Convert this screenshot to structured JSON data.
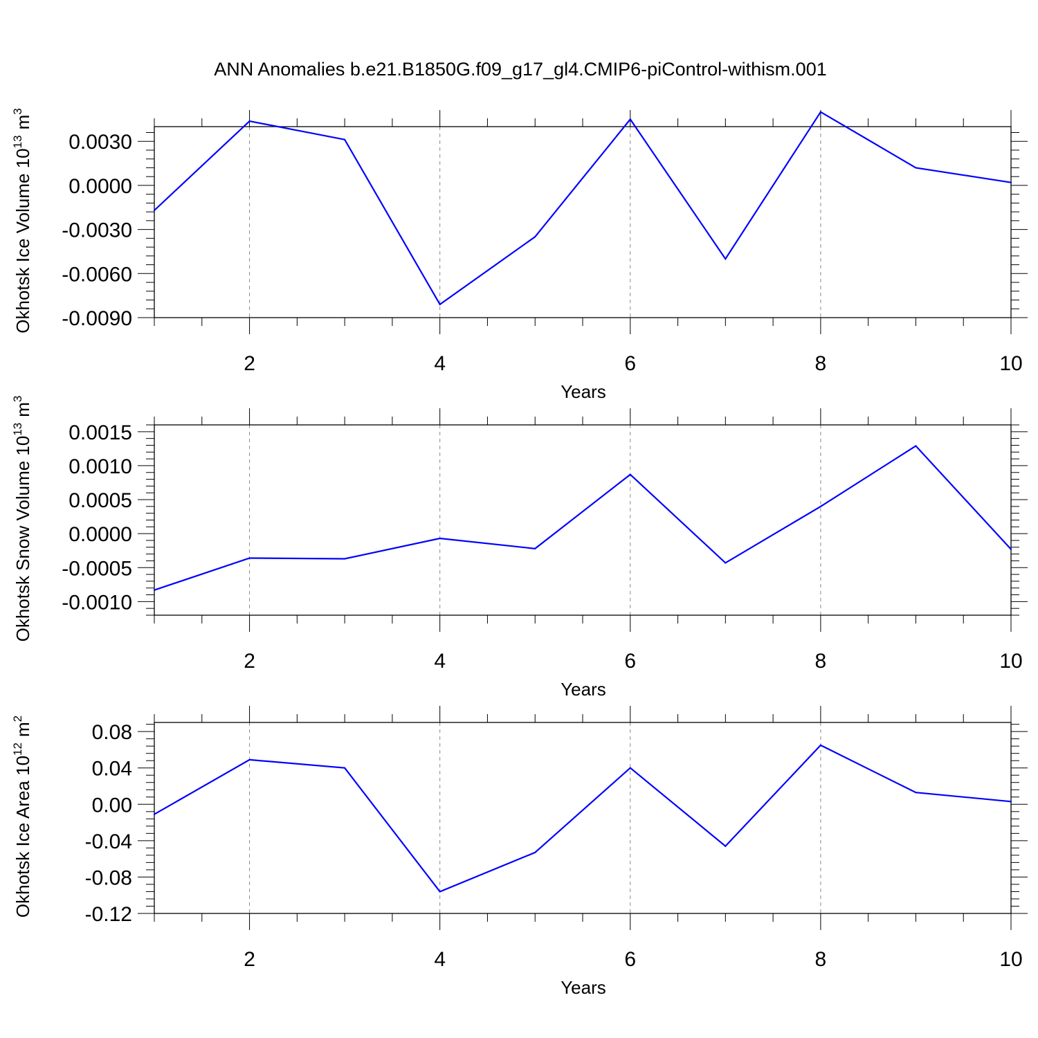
{
  "title": "ANN Anomalies b.e21.B1850G.f09_g17_gl4.CMIP6-piControl-withism.001",
  "colors": {
    "series": "#0000ff",
    "axes": "#000000",
    "grid": "#888888"
  },
  "chart_data": [
    {
      "type": "line",
      "ylabel_main": "Okhotsk Ice Volume 10",
      "ylabel_exp": "13",
      "ylabel_unit": "m",
      "ylabel_unit_exp": "3",
      "xlabel": "Years",
      "xlim": [
        1,
        10
      ],
      "ylim": [
        -0.009,
        0.004
      ],
      "x_ticks": [
        2,
        4,
        6,
        8,
        10
      ],
      "x_tick_labels": [
        "2",
        "4",
        "6",
        "8",
        "10"
      ],
      "y_ticks": [
        -0.009,
        -0.006,
        -0.003,
        0.0,
        0.003
      ],
      "y_tick_labels": [
        "-0.0090",
        "-0.0060",
        "-0.0030",
        "0.0000",
        "0.0030"
      ],
      "grid": "dashed vertical at major x ticks",
      "x": [
        1,
        2,
        3,
        4,
        5,
        6,
        7,
        8,
        9,
        10
      ],
      "values": [
        -0.0017,
        0.00437,
        0.00312,
        -0.0081,
        -0.0035,
        0.0045,
        -0.005,
        0.005,
        0.0012,
        0.0002
      ]
    },
    {
      "type": "line",
      "ylabel_main": "Okhotsk Snow Volume 10",
      "ylabel_exp": "13",
      "ylabel_unit": "m",
      "ylabel_unit_exp": "3",
      "xlabel": "Years",
      "xlim": [
        1,
        10
      ],
      "ylim": [
        -0.0012,
        0.0016
      ],
      "x_ticks": [
        2,
        4,
        6,
        8,
        10
      ],
      "x_tick_labels": [
        "2",
        "4",
        "6",
        "8",
        "10"
      ],
      "y_ticks": [
        -0.001,
        -0.0005,
        0.0,
        0.0005,
        0.001,
        0.0015
      ],
      "y_tick_labels": [
        "-0.0010",
        "-0.0005",
        "0.0000",
        "0.0005",
        "0.0010",
        "0.0015"
      ],
      "grid": "dashed vertical at major x ticks",
      "x": [
        1,
        2,
        3,
        4,
        5,
        6,
        7,
        8,
        9,
        10
      ],
      "values": [
        -0.00083,
        -0.00036,
        -0.00037,
        -7e-05,
        -0.00022,
        0.00087,
        -0.00043,
        0.0004,
        0.00129,
        -0.00023
      ]
    },
    {
      "type": "line",
      "ylabel_main": "Okhotsk Ice Area 10",
      "ylabel_exp": "12",
      "ylabel_unit": "m",
      "ylabel_unit_exp": "2",
      "xlabel": "Years",
      "xlim": [
        1,
        10
      ],
      "ylim": [
        -0.12,
        0.09
      ],
      "x_ticks": [
        2,
        4,
        6,
        8,
        10
      ],
      "x_tick_labels": [
        "2",
        "4",
        "6",
        "8",
        "10"
      ],
      "y_ticks": [
        -0.12,
        -0.08,
        -0.04,
        0.0,
        0.04,
        0.08
      ],
      "y_tick_labels": [
        "-0.12",
        "-0.08",
        "-0.04",
        "0.00",
        "0.04",
        "0.08"
      ],
      "grid": "dashed vertical at major x ticks",
      "x": [
        1,
        2,
        3,
        4,
        5,
        6,
        7,
        8,
        9,
        10
      ],
      "values": [
        -0.011,
        0.049,
        0.04,
        -0.096,
        -0.053,
        0.04,
        -0.046,
        0.065,
        0.013,
        0.003
      ]
    }
  ]
}
